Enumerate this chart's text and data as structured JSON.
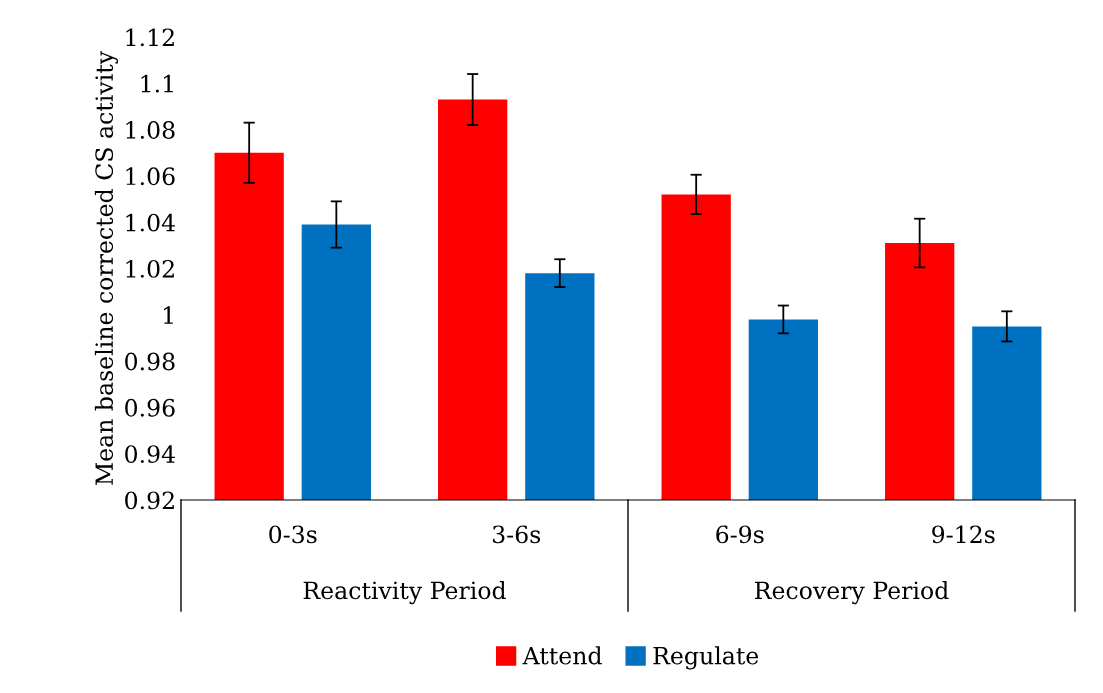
{
  "chart_data": {
    "type": "bar",
    "ylabel": "Mean baseline corrected CS activity",
    "categories": [
      "0-3s",
      "3-6s",
      "6-9s",
      "9-12s"
    ],
    "series": [
      {
        "name": "Attend",
        "color": "#ff0000",
        "values": [
          1.07,
          1.093,
          1.052,
          1.031
        ],
        "errors": [
          0.013,
          0.011,
          0.0085,
          0.0105
        ]
      },
      {
        "name": "Regulate",
        "color": "#0070c0",
        "values": [
          1.039,
          1.018,
          0.998,
          0.995
        ],
        "errors": [
          0.01,
          0.006,
          0.006,
          0.0065
        ]
      }
    ],
    "ylim": [
      0.92,
      1.12
    ],
    "yticks": [
      0.92,
      0.94,
      0.96,
      0.98,
      1,
      1.02,
      1.04,
      1.06,
      1.08,
      1.1,
      1.12
    ],
    "annotations": [
      "Reactivity Period",
      "Recovery Period"
    ],
    "grid": false,
    "legend": "bottom"
  }
}
